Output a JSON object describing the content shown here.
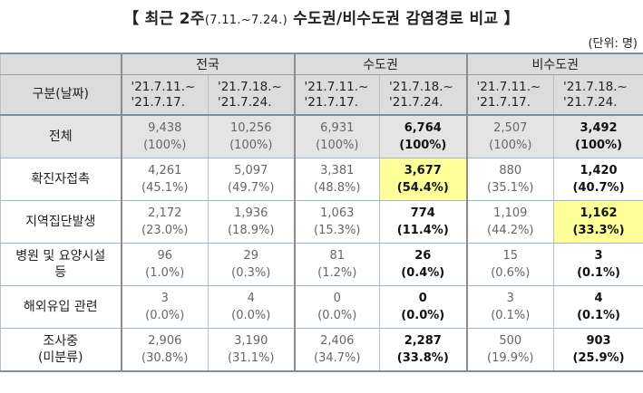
{
  "title_main": "【 최근 2주",
  "title_dates": "(7.11.~7.24.)",
  "title_rest": " 수도권/비수도권 감염경로 비교 】",
  "unit": "(단위: 명)",
  "region_headers": [
    "전국",
    "수도권",
    "비수도권"
  ],
  "row_header_label": "구분(날짜)",
  "periods": [
    [
      "'21.7.11.~",
      "'21.7.17."
    ],
    [
      "'21.7.18.~",
      "'21.7.24."
    ],
    [
      "'21.7.11.~",
      "'21.7.17."
    ],
    [
      "'21.7.18.~",
      "'21.7.24."
    ],
    [
      "'21.7.11.~",
      "'21.7.17."
    ],
    [
      "'21.7.18.~",
      "'21.7.24."
    ]
  ],
  "rows": [
    {
      "label": [
        "전체"
      ],
      "values": [
        [
          "9,438",
          "(100%)"
        ],
        [
          "10,256",
          "(100%)"
        ],
        [
          "6,931",
          "(100%)"
        ],
        [
          "6,764",
          "(100%)"
        ],
        [
          "2,507",
          "(100%)"
        ],
        [
          "3,492",
          "(100%)"
        ]
      ]
    },
    {
      "label": [
        "확진자접촉"
      ],
      "values": [
        [
          "4,261",
          "(45.1%)"
        ],
        [
          "5,097",
          "(49.7%)"
        ],
        [
          "3,381",
          "(48.8%)"
        ],
        [
          "3,677",
          "(54.4%)"
        ],
        [
          "880",
          "(35.1%)"
        ],
        [
          "1,420",
          "(40.7%)"
        ]
      ]
    },
    {
      "label": [
        "지역집단발생"
      ],
      "values": [
        [
          "2,172",
          "(23.0%)"
        ],
        [
          "1,936",
          "(18.9%)"
        ],
        [
          "1,063",
          "(15.3%)"
        ],
        [
          "774",
          "(11.4%)"
        ],
        [
          "1,109",
          "(44.2%)"
        ],
        [
          "1,162",
          "(33.3%)"
        ]
      ]
    },
    {
      "label": [
        "병원 및 요양시설",
        "등"
      ],
      "values": [
        [
          "96",
          "(1.0%)"
        ],
        [
          "29",
          "(0.3%)"
        ],
        [
          "81",
          "(1.2%)"
        ],
        [
          "26",
          "(0.4%)"
        ],
        [
          "15",
          "(0.6%)"
        ],
        [
          "3",
          "(0.1%)"
        ]
      ]
    },
    {
      "label": [
        "해외유입 관련"
      ],
      "values": [
        [
          "3",
          "(0.0%)"
        ],
        [
          "4",
          "(0.0%)"
        ],
        [
          "0",
          "(0.0%)"
        ],
        [
          "0",
          "(0.0%)"
        ],
        [
          "3",
          "(0.1%)"
        ],
        [
          "4",
          "(0.1%)"
        ]
      ]
    },
    {
      "label": [
        "조사중",
        "(미분류)"
      ],
      "values": [
        [
          "2,906",
          "(30.8%)"
        ],
        [
          "3,190",
          "(31.1%)"
        ],
        [
          "2,406",
          "(34.7%)"
        ],
        [
          "2,287",
          "(33.8%)"
        ],
        [
          "500",
          "(19.9%)"
        ],
        [
          "903",
          "(25.9%)"
        ]
      ]
    }
  ],
  "highlight_color": "#ffff99"
}
